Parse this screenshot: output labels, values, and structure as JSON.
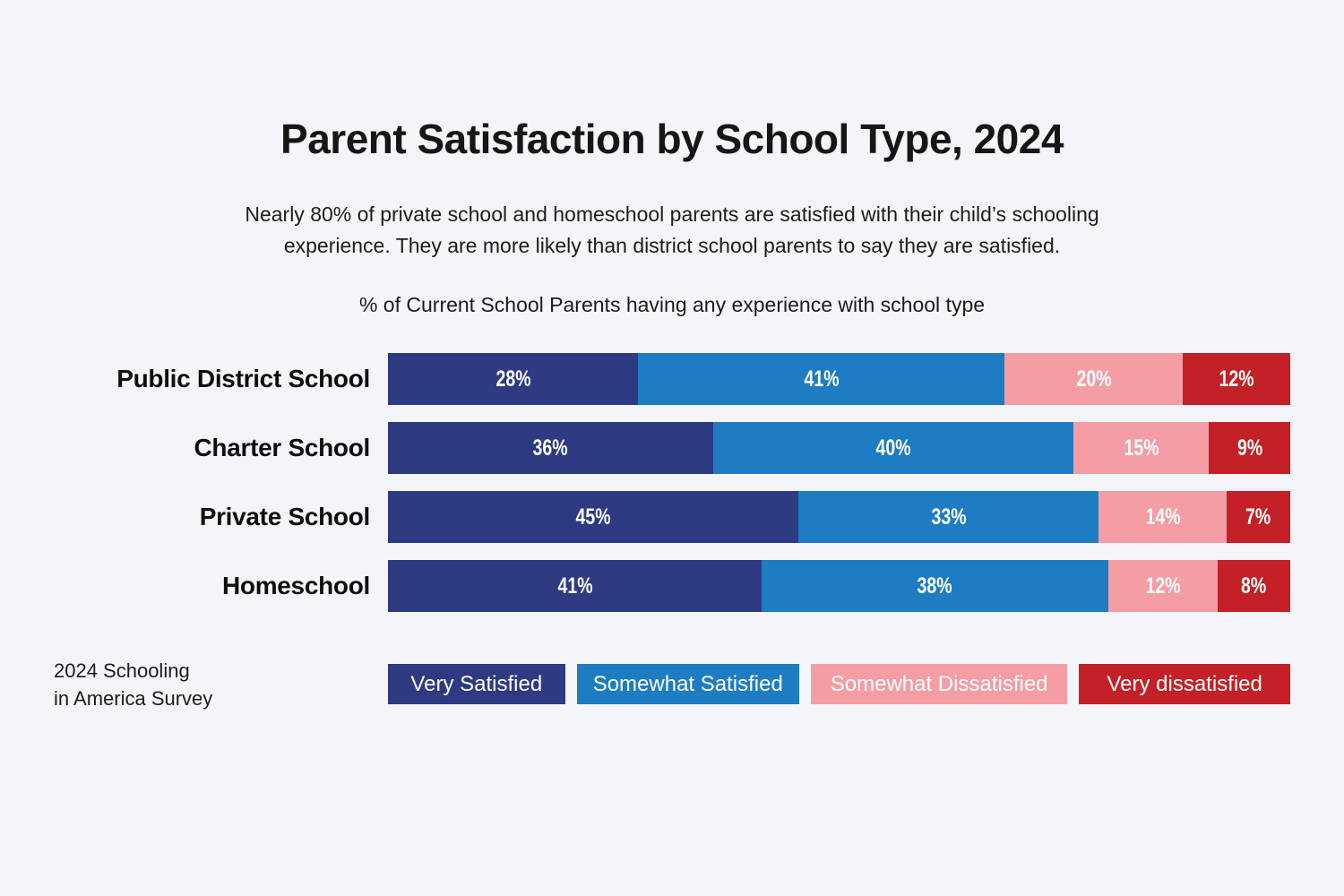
{
  "page": {
    "background": "#f4f5f9",
    "title": "Parent Satisfaction by School Type, 2024",
    "subtitle_lines": [
      "Nearly 80% of private school and homeschool parents are satisfied with their child’s schooling",
      "experience. They are more likely than district school parents to say they are satisfied."
    ],
    "axis_note": "% of Current School Parents having any experience with school type",
    "source_lines": [
      "2024 Schooling",
      "in America Survey"
    ]
  },
  "chart_data": {
    "type": "bar",
    "orientation": "horizontal",
    "stacked": true,
    "title": "Parent Satisfaction by School Type, 2024",
    "subtitle": "Nearly 80% of private school and homeschool parents are satisfied with their child’s schooling experience. They are more likely than district school parents to say they are satisfied.",
    "axis_label": "% of Current School Parents having any experience with school type",
    "categories": [
      "Public District School",
      "Charter School",
      "Private School",
      "Homeschool"
    ],
    "series": [
      {
        "name": "Very Satisfied",
        "color": "#2e3a81",
        "values": [
          28,
          36,
          45,
          41
        ]
      },
      {
        "name": "Somewhat Satisfied",
        "color": "#1e7dc2",
        "values": [
          41,
          40,
          33,
          38
        ]
      },
      {
        "name": "Somewhat Dissatisfied",
        "color": "#f49da5",
        "values": [
          20,
          15,
          14,
          12
        ]
      },
      {
        "name": "Very dissatisfied",
        "color": "#c32127",
        "values": [
          12,
          9,
          7,
          8
        ]
      }
    ],
    "value_suffix": "%",
    "value_label_color": "#ffffff",
    "legend_position": "bottom",
    "grid": false,
    "xlim": [
      0,
      100
    ],
    "source": "2024 Schooling in America Survey"
  }
}
